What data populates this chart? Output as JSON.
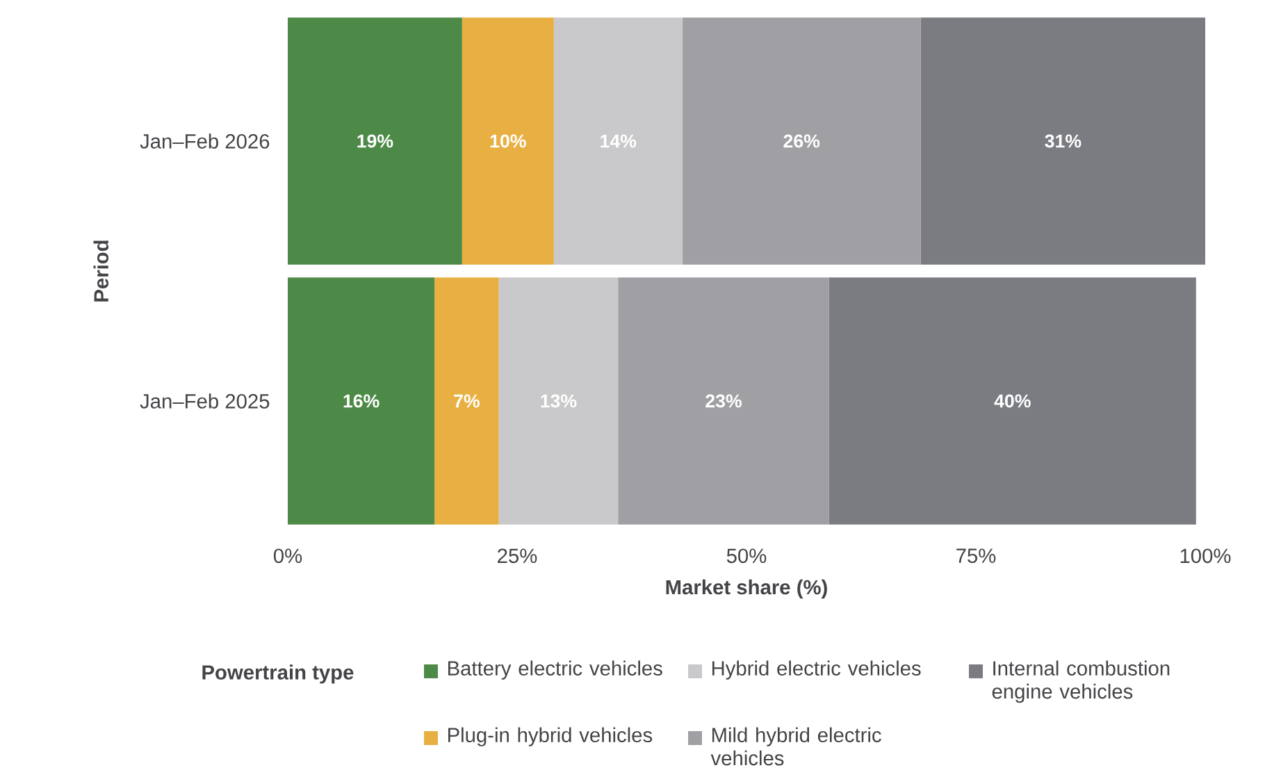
{
  "chart_data": {
    "type": "bar",
    "orientation": "horizontal",
    "stacked": true,
    "xlabel": "Market share (%)",
    "ylabel": "Period",
    "legend_title": "Powertrain type",
    "legend": "bottom",
    "categories": [
      "Jan–Feb 2026",
      "Jan–Feb 2025"
    ],
    "series": [
      {
        "name": "Battery electric vehicles",
        "color": "#4e8a47",
        "values": [
          19,
          16
        ],
        "value_labels": [
          "19%",
          "16%"
        ]
      },
      {
        "name": "Plug-in hybrid vehicles",
        "color": "#e8b043",
        "values": [
          10,
          7
        ],
        "value_labels": [
          "10%",
          "7%"
        ]
      },
      {
        "name": "Hybrid electric vehicles",
        "color": "#c9c9cb",
        "values": [
          14,
          13
        ],
        "value_labels": [
          "14%",
          "13%"
        ]
      },
      {
        "name": "Mild hybrid electric vehicles",
        "color": "#a0a0a4",
        "values": [
          26,
          23
        ],
        "value_labels": [
          "26%",
          "23%"
        ]
      },
      {
        "name": "Internal combustion engine vehicles",
        "color": "#7b7c82",
        "values": [
          31,
          40
        ],
        "value_labels": [
          "31%",
          "40%"
        ]
      }
    ],
    "xlim": [
      0,
      100
    ],
    "xticks": [
      {
        "value": 0,
        "label": "0%"
      },
      {
        "value": 25,
        "label": "25%"
      },
      {
        "value": 50,
        "label": "50%"
      },
      {
        "value": 75,
        "label": "75%"
      },
      {
        "value": 100,
        "label": "100%"
      }
    ]
  }
}
